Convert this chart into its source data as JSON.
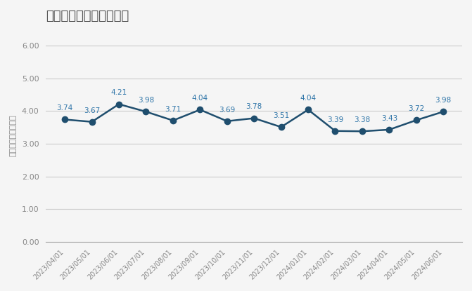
{
  "title": "民泊のみの平均滞在日数",
  "ylabel": "平均滞在日数（泊）",
  "dates": [
    "2023/04/01",
    "2023/05/01",
    "2023/06/01",
    "2023/07/01",
    "2023/08/01",
    "2023/09/01",
    "2023/10/01",
    "2023/11/01",
    "2023/12/01",
    "2024/01/01",
    "2024/02/01",
    "2024/03/01",
    "2024/04/01",
    "2024/05/01",
    "2024/06/01"
  ],
  "values": [
    3.74,
    3.67,
    4.21,
    3.98,
    3.71,
    4.04,
    3.69,
    3.78,
    3.51,
    4.04,
    3.39,
    3.38,
    3.43,
    3.72,
    3.98
  ],
  "line_color": "#1f4e6e",
  "marker_color": "#1f4e6e",
  "marker_size": 6,
  "line_width": 1.8,
  "ylim": [
    0.0,
    6.5
  ],
  "yticks": [
    0.0,
    1.0,
    2.0,
    3.0,
    4.0,
    5.0,
    6.0
  ],
  "grid_color": "#cccccc",
  "background_color": "#f5f5f5",
  "title_fontsize": 13,
  "label_fontsize": 8,
  "annotation_fontsize": 7.5,
  "annotation_color": "#2e75a8",
  "tick_color": "#888888",
  "ylabel_color": "#888888"
}
